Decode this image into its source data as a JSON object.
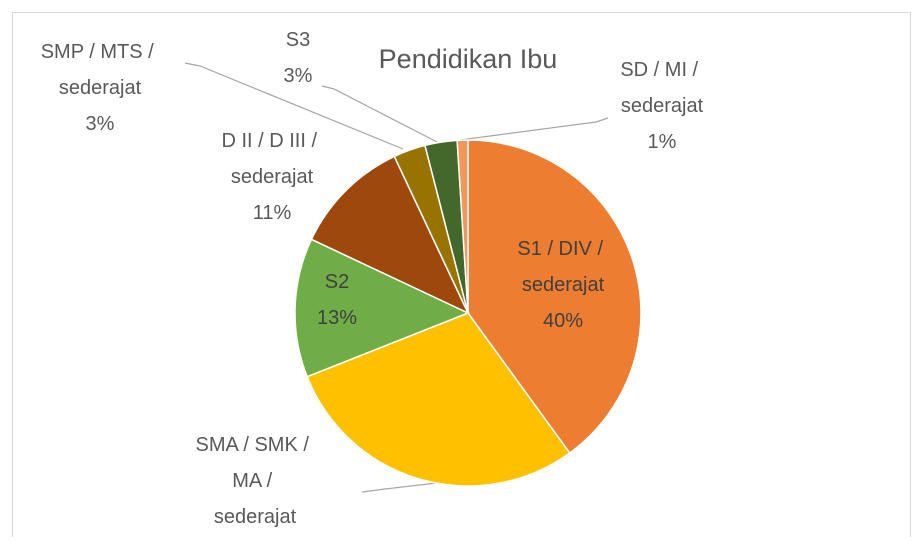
{
  "chart_data": {
    "type": "pie",
    "title": "Pendidikan Ibu",
    "categories": [
      "S1 / DIV / sederajat",
      "SMA / SMK / MA / sederajat",
      "S2",
      "D II / D III / sederajat",
      "SMP / MTS / sederajat",
      "S3",
      "SD / MI / sederajat"
    ],
    "values": [
      40,
      29,
      13,
      11,
      3,
      3,
      1
    ],
    "value_labels": [
      "40%",
      null,
      "13%",
      "11%",
      "3%",
      "3%",
      "1%"
    ],
    "colors": [
      "#ed7d31",
      "#ffc000",
      "#70ad47",
      "#9e480e",
      "#997300",
      "#43682b",
      "#f1975a"
    ]
  }
}
